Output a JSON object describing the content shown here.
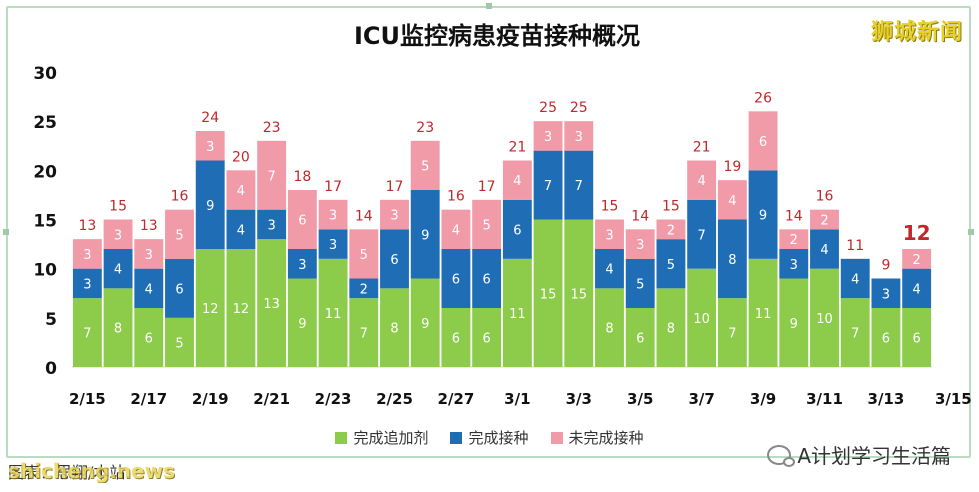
{
  "brand": "狮城新闻",
  "footer_text": "图表：思翔/本站.",
  "watermark_left": "shicheng.news",
  "watermark_right": "A计划学习生活篇",
  "colors": {
    "booster": "#8ccc4a",
    "vaccinated": "#1f6eb5",
    "unvaccinated": "#f19aa8",
    "total_label": "#c0282b"
  },
  "chart_data": {
    "type": "bar",
    "stacked": true,
    "title": "ICU监控病患疫苗接种概况",
    "ylim": [
      0,
      30
    ],
    "yticks": [
      0,
      5,
      10,
      15,
      20,
      25,
      30
    ],
    "xtick_labels": [
      "2/15",
      "2/17",
      "2/19",
      "2/21",
      "2/23",
      "2/25",
      "2/27",
      "3/1",
      "3/3",
      "3/5",
      "3/7",
      "3/9",
      "3/11",
      "3/13",
      "3/15"
    ],
    "categories": [
      "2/15",
      "2/16",
      "2/17",
      "2/18",
      "2/19",
      "2/20",
      "2/21",
      "2/22",
      "2/23",
      "2/24",
      "2/25",
      "2/26",
      "2/27",
      "2/28",
      "3/1",
      "3/2",
      "3/3",
      "3/4",
      "3/5",
      "3/6",
      "3/7",
      "3/8",
      "3/9",
      "3/10",
      "3/11",
      "3/12",
      "3/13",
      "3/14"
    ],
    "series": [
      {
        "name": "完成追加剂",
        "values": [
          7,
          8,
          6,
          5,
          12,
          12,
          13,
          9,
          11,
          7,
          8,
          9,
          6,
          6,
          11,
          15,
          15,
          8,
          6,
          8,
          10,
          7,
          11,
          9,
          10,
          7,
          6,
          6
        ]
      },
      {
        "name": "完成接种",
        "values": [
          3,
          4,
          4,
          6,
          9,
          4,
          3,
          3,
          3,
          2,
          6,
          9,
          6,
          6,
          6,
          7,
          7,
          4,
          5,
          5,
          7,
          8,
          9,
          3,
          4,
          4,
          3,
          4
        ]
      },
      {
        "name": "未完成接种",
        "values": [
          3,
          3,
          3,
          5,
          3,
          4,
          7,
          6,
          3,
          5,
          3,
          5,
          4,
          5,
          4,
          3,
          3,
          3,
          3,
          2,
          4,
          4,
          6,
          2,
          2,
          0,
          0,
          2
        ]
      }
    ],
    "totals": [
      13,
      15,
      13,
      16,
      24,
      20,
      23,
      18,
      17,
      14,
      17,
      23,
      16,
      17,
      21,
      25,
      25,
      15,
      14,
      15,
      21,
      19,
      26,
      14,
      16,
      11,
      9,
      12
    ],
    "grid": false,
    "legend_position": "bottom"
  }
}
